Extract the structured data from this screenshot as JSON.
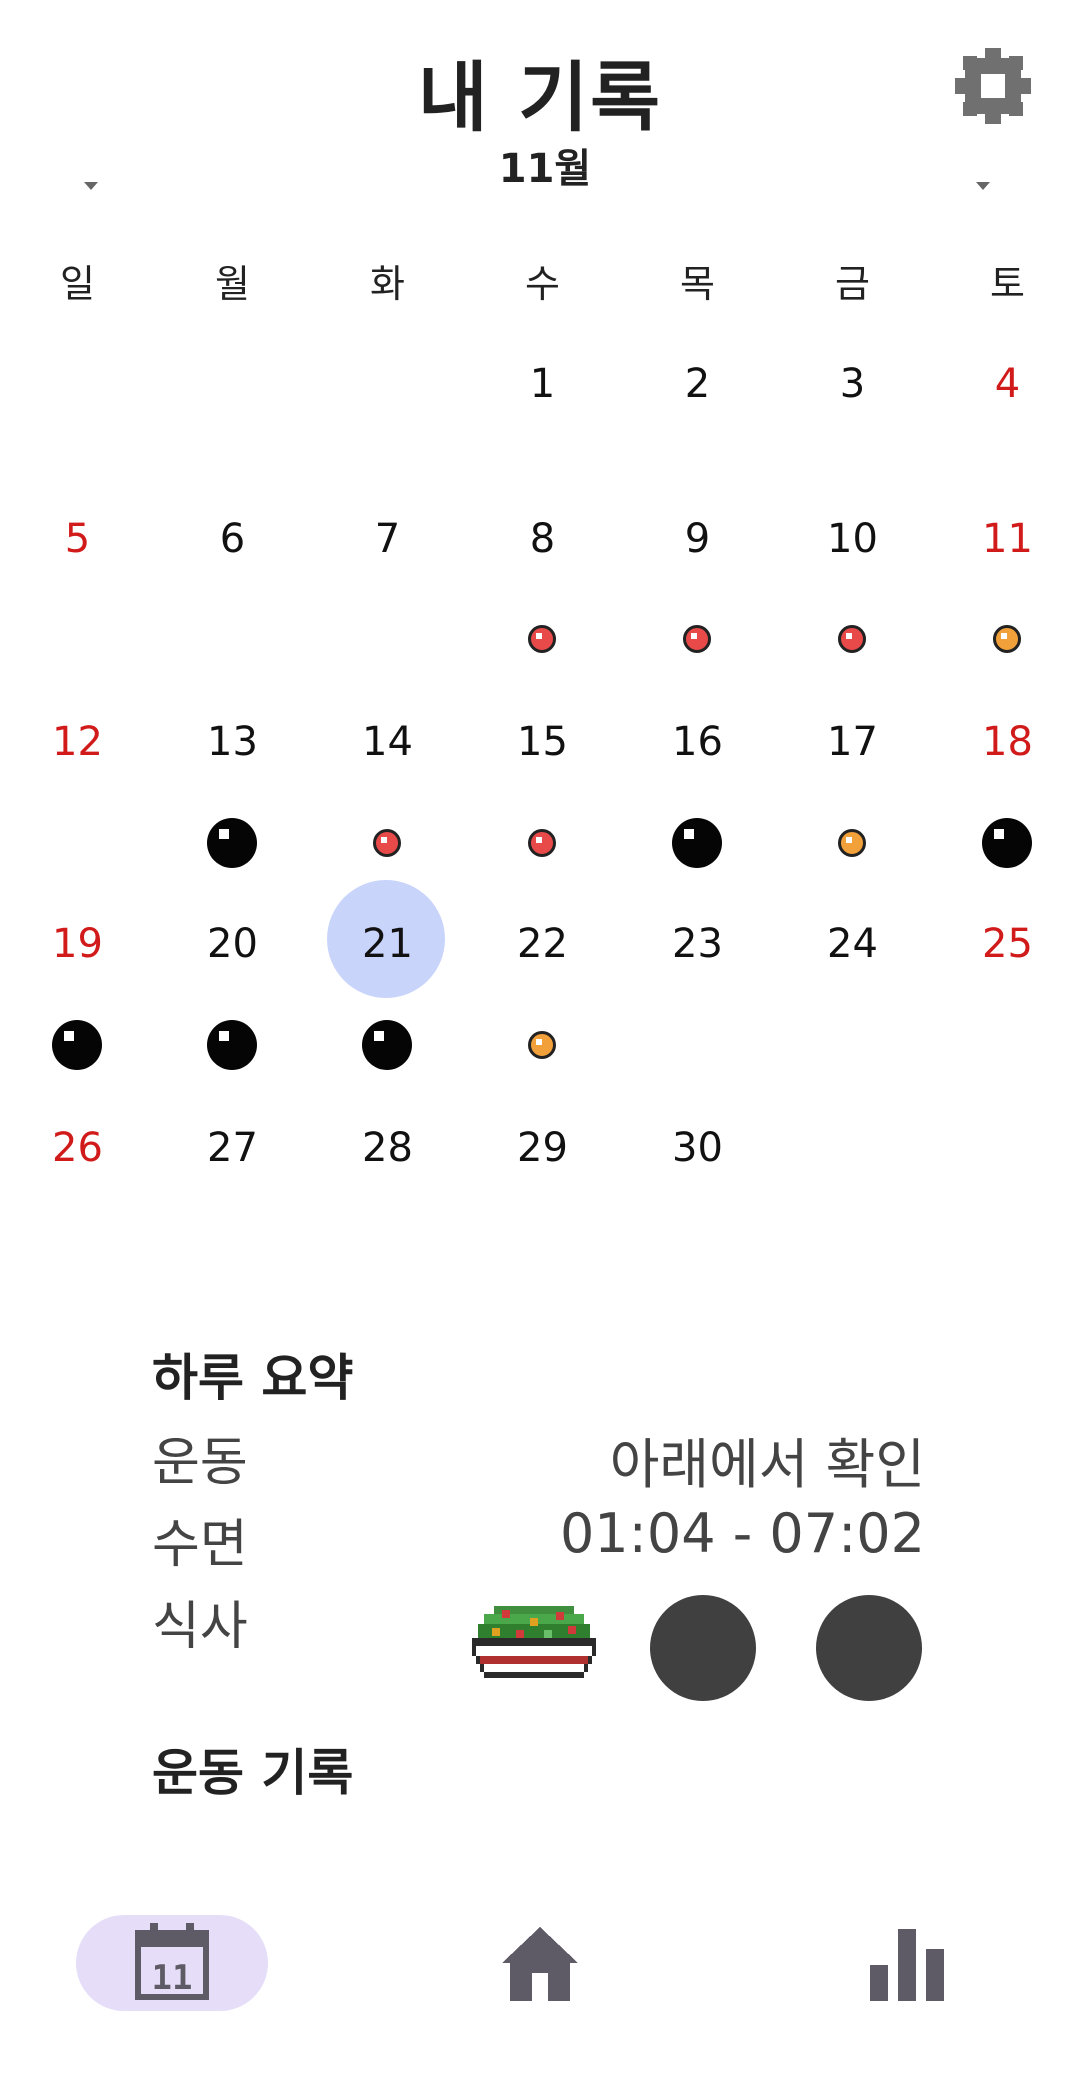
{
  "header": {
    "title": "내 기록"
  },
  "calendar": {
    "month_label": "11월",
    "weekdays": [
      "일",
      "월",
      "화",
      "수",
      "목",
      "금",
      "토"
    ],
    "days": {
      "d1": "1",
      "d2": "2",
      "d3": "3",
      "d4": "4",
      "d5": "5",
      "d6": "6",
      "d7": "7",
      "d8": "8",
      "d9": "9",
      "d10": "10",
      "d11": "11",
      "d12": "12",
      "d13": "13",
      "d14": "14",
      "d15": "15",
      "d16": "16",
      "d17": "17",
      "d18": "18",
      "d19": "19",
      "d20": "20",
      "d21": "21",
      "d22": "22",
      "d23": "23",
      "d24": "24",
      "d25": "25",
      "d26": "26",
      "d27": "27",
      "d28": "28",
      "d29": "29",
      "d30": "30"
    },
    "selected_day": "21",
    "markers": {
      "8": "red",
      "9": "red",
      "10": "red",
      "11": "orange",
      "13": "black",
      "14": "red",
      "15": "red",
      "16": "black",
      "17": "orange",
      "18": "black",
      "19": "black",
      "20": "black",
      "21": "black",
      "22": "orange"
    }
  },
  "summary": {
    "title": "하루 요약",
    "exercise_label": "운동",
    "exercise_value": "아래에서 확인",
    "sleep_label": "수면",
    "sleep_value": "01:04 - 07:02",
    "meal_label": "식사",
    "meals": [
      "salad-icon",
      "empty-meal-icon",
      "empty-meal-icon"
    ]
  },
  "workout": {
    "title": "운동 기록"
  },
  "colors": {
    "weekend": "#d11a1a",
    "selected": "#c9d4fb",
    "marker_red": "#e84a4a",
    "marker_orange": "#f2a03a",
    "nav_active": "#e6def8",
    "nav_icon": "#5f5b66"
  },
  "nav": {
    "items": [
      "calendar-icon",
      "home-icon",
      "stats-icon"
    ],
    "calendar_day": "11"
  }
}
